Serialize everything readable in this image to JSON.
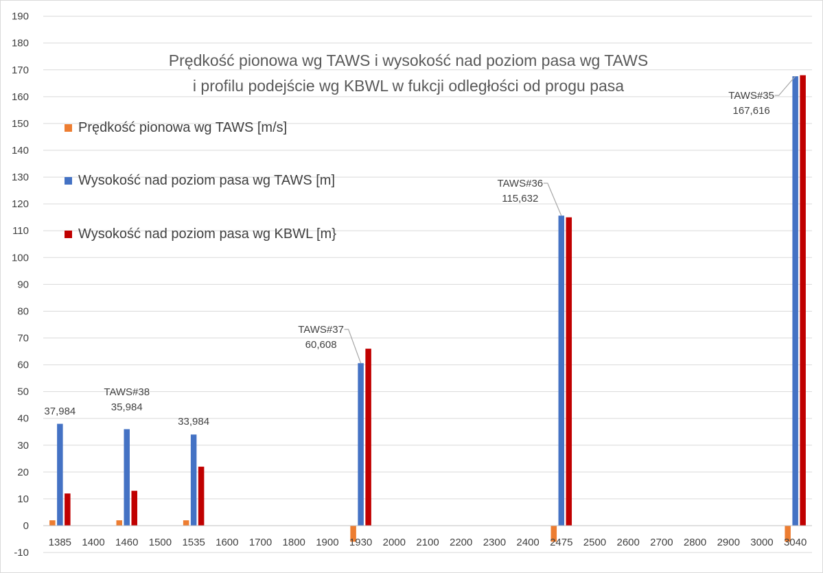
{
  "chart_data": {
    "type": "bar",
    "title_lines": [
      "Prędkość pionowa wg TAWS i wysokość nad poziom pasa wg TAWS",
      "i profilu podejście wg KBWL w fukcji odległości od progu pasa"
    ],
    "categories": [
      "1385",
      "1400",
      "1460",
      "1500",
      "1535",
      "1600",
      "1700",
      "1800",
      "1900",
      "1930",
      "2000",
      "2100",
      "2200",
      "2300",
      "2400",
      "2475",
      "2500",
      "2600",
      "2700",
      "2800",
      "2900",
      "3000",
      "3040"
    ],
    "ylim": [
      -10,
      190
    ],
    "yticks": [
      -10,
      0,
      10,
      20,
      30,
      40,
      50,
      60,
      70,
      80,
      90,
      100,
      110,
      120,
      130,
      140,
      150,
      160,
      170,
      180,
      190
    ],
    "grid": true,
    "legend_position": "left",
    "series": [
      {
        "name": "Prędkość pionowa wg TAWS [m/s]",
        "color": "#ED7D31",
        "values": [
          2,
          null,
          2,
          null,
          2,
          null,
          null,
          null,
          null,
          -6,
          null,
          null,
          null,
          null,
          null,
          -6,
          null,
          null,
          null,
          null,
          null,
          null,
          -6
        ]
      },
      {
        "name": "Wysokość nad poziom pasa wg TAWS [m]",
        "color": "#4472C4",
        "values": [
          37.984,
          null,
          35.984,
          null,
          33.984,
          null,
          null,
          null,
          null,
          60.608,
          null,
          null,
          null,
          null,
          null,
          115.632,
          null,
          null,
          null,
          null,
          null,
          null,
          167.616
        ]
      },
      {
        "name": "Wysokość nad poziom pasa wg KBWL [m}",
        "color": "#C00000",
        "values": [
          12,
          null,
          13,
          null,
          22,
          null,
          null,
          null,
          null,
          66,
          null,
          null,
          null,
          null,
          null,
          115,
          null,
          null,
          null,
          null,
          null,
          null,
          168
        ]
      }
    ],
    "annotations": [
      {
        "category": "1385",
        "lines": [
          "37,984"
        ]
      },
      {
        "category": "1460",
        "lines": [
          "TAWS#38",
          "35,984"
        ]
      },
      {
        "category": "1535",
        "lines": [
          "33,984"
        ]
      },
      {
        "category": "1930",
        "lines": [
          "TAWS#37",
          "60,608"
        ],
        "leader": true
      },
      {
        "category": "2475",
        "lines": [
          "TAWS#36",
          "115,632"
        ],
        "leader": true
      },
      {
        "category": "3040",
        "lines": [
          "TAWS#35",
          "167,616"
        ],
        "leader": true
      }
    ]
  }
}
